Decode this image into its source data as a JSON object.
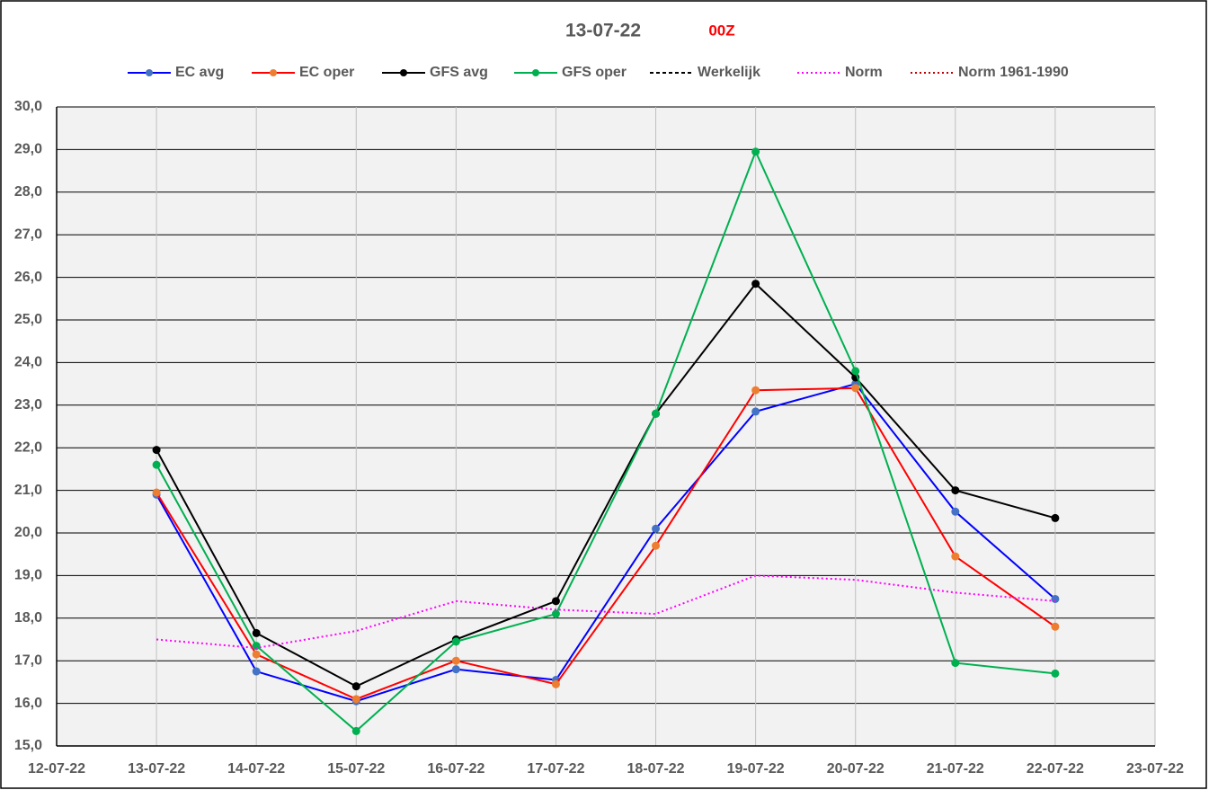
{
  "chart_data": {
    "type": "line",
    "title": "13-07-22",
    "subtitle": "00Z",
    "categories": [
      "12-07-22",
      "13-07-22",
      "14-07-22",
      "15-07-22",
      "16-07-22",
      "17-07-22",
      "18-07-22",
      "19-07-22",
      "20-07-22",
      "21-07-22",
      "22-07-22",
      "23-07-22"
    ],
    "series": [
      {
        "name": "EC avg",
        "color": "#0000ff",
        "marker_color": "#4472c4",
        "dash": "solid",
        "values": [
          null,
          20.9,
          16.75,
          16.05,
          16.8,
          16.55,
          20.1,
          22.85,
          23.5,
          20.5,
          18.45,
          null
        ]
      },
      {
        "name": "EC oper",
        "color": "#ff0000",
        "marker_color": "#ed7d31",
        "dash": "solid",
        "values": [
          null,
          20.95,
          17.15,
          16.1,
          17.0,
          16.45,
          19.7,
          23.35,
          23.4,
          19.45,
          17.8,
          null
        ]
      },
      {
        "name": "GFS avg",
        "color": "#000000",
        "marker_color": "#000000",
        "dash": "solid",
        "values": [
          null,
          21.95,
          17.65,
          16.4,
          17.5,
          18.4,
          22.8,
          25.85,
          23.65,
          21.0,
          20.35,
          null
        ]
      },
      {
        "name": "GFS oper",
        "color": "#00b050",
        "marker_color": "#00b050",
        "dash": "solid",
        "values": [
          null,
          21.6,
          17.35,
          15.35,
          17.45,
          18.1,
          22.8,
          28.95,
          23.8,
          16.95,
          16.7,
          null
        ]
      },
      {
        "name": "Werkelijk",
        "color": "#000000",
        "dash": "dashed",
        "values": [
          null,
          null,
          null,
          null,
          null,
          null,
          null,
          null,
          null,
          null,
          null,
          null
        ]
      },
      {
        "name": "Norm",
        "color": "#ff00ff",
        "dash": "dotted",
        "values": [
          null,
          17.5,
          17.3,
          17.7,
          18.4,
          18.2,
          18.1,
          19.0,
          18.9,
          18.6,
          18.4,
          null
        ]
      },
      {
        "name": "Norm 1961-1990",
        "color": "#c00000",
        "dash": "dotted",
        "values": [
          null,
          null,
          null,
          null,
          null,
          null,
          null,
          null,
          null,
          null,
          null,
          null
        ]
      }
    ],
    "ylim": [
      15,
      30
    ],
    "yticks": [
      {
        "value": 15,
        "label": "15,0"
      },
      {
        "value": 16,
        "label": "16,0"
      },
      {
        "value": 17,
        "label": "17,0"
      },
      {
        "value": 18,
        "label": "18,0"
      },
      {
        "value": 19,
        "label": "19,0"
      },
      {
        "value": 20,
        "label": "20,0"
      },
      {
        "value": 21,
        "label": "21,0"
      },
      {
        "value": 22,
        "label": "22,0"
      },
      {
        "value": 23,
        "label": "23,0"
      },
      {
        "value": 24,
        "label": "24,0"
      },
      {
        "value": 25,
        "label": "25,0"
      },
      {
        "value": 26,
        "label": "26,0"
      },
      {
        "value": 27,
        "label": "27,0"
      },
      {
        "value": 28,
        "label": "28,0"
      },
      {
        "value": 29,
        "label": "29,0"
      },
      {
        "value": 30,
        "label": "30,0"
      }
    ],
    "grid": true,
    "legend": "top"
  }
}
